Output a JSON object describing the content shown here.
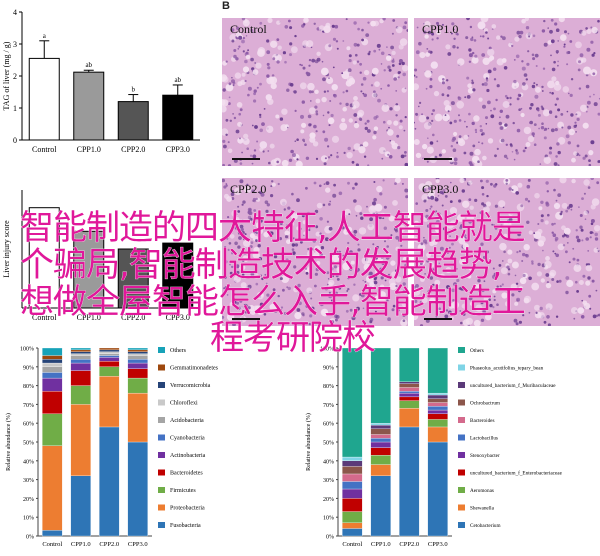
{
  "panel_b_label": "B",
  "micrographs": [
    {
      "label": "Control"
    },
    {
      "label": "CPP1.0"
    },
    {
      "label": "CPP2.0"
    },
    {
      "label": "CPP3.0"
    }
  ],
  "overlay_text": {
    "line1": "智能制造的四大特征,人工智能就是",
    "line2": "个骗局,智能制造技术的发展趋势,",
    "line3": "想做全屋智能怎么入手,智能制造工",
    "line4": "程考研院校"
  },
  "chart_data": [
    {
      "type": "bar",
      "title": "",
      "ylabel": "TAG of liver (mg / g)",
      "categories": [
        "Control",
        "CPP1.0",
        "CPP2.0",
        "CPP3.0"
      ],
      "values": [
        2.55,
        2.12,
        1.2,
        1.4
      ],
      "errors": [
        0.55,
        0.06,
        0.22,
        0.32
      ],
      "significance": [
        "a",
        "ab",
        "b",
        "ab"
      ],
      "bar_colors": [
        "#ffffff",
        "#9a9a9a",
        "#555555",
        "#000000"
      ],
      "yticks": [
        "0",
        "1",
        "2",
        "3",
        "4"
      ],
      "ylim": [
        0,
        4
      ]
    },
    {
      "type": "bar",
      "ylabel": "Liver injury score",
      "categories": [
        "Control",
        "CPP1.0",
        "CPP2.0",
        "CPP3.0"
      ],
      "values": [
        3.4,
        2.6,
        2.0,
        2.2
      ],
      "bar_colors": [
        "#ffffff",
        "#9a9a9a",
        "#555555",
        "#000000"
      ],
      "ylim": [
        0,
        4
      ]
    },
    {
      "type": "bar",
      "stacked": true,
      "ylabel": "Relative abundance (%)",
      "categories": [
        "Control",
        "CPP1.0",
        "CPP2.0",
        "CPP3.0"
      ],
      "yticks": [
        "0%",
        "10%",
        "20%",
        "30%",
        "40%",
        "50%",
        "60%",
        "70%",
        "80%",
        "90%",
        "100%"
      ],
      "series": [
        {
          "name": "Fusobacteria",
          "color": "#2e75b6",
          "values": [
            3,
            32,
            58,
            50
          ]
        },
        {
          "name": "Proteobacteria",
          "color": "#ed7d31",
          "values": [
            45,
            38,
            27,
            26
          ]
        },
        {
          "name": "Firmicutes",
          "color": "#70ad47",
          "values": [
            17,
            10,
            5,
            8
          ]
        },
        {
          "name": "Bacteroidetes",
          "color": "#c00000",
          "values": [
            12,
            8,
            3,
            5
          ]
        },
        {
          "name": "Actinobacteria",
          "color": "#7030a0",
          "values": [
            7,
            4,
            2,
            3
          ]
        },
        {
          "name": "Cyanobacteria",
          "color": "#4472c4",
          "values": [
            3,
            2,
            1,
            2
          ]
        },
        {
          "name": "Acidobacteria",
          "color": "#a5a5a5",
          "values": [
            3,
            2,
            1,
            2
          ]
        },
        {
          "name": "Chloroflexi",
          "color": "#c9c9c9",
          "values": [
            2,
            1,
            1,
            1
          ]
        },
        {
          "name": "Verrucomicrobia",
          "color": "#264478",
          "values": [
            2,
            1,
            1,
            1
          ]
        },
        {
          "name": "Gemmatimonadetes",
          "color": "#9e480e",
          "values": [
            2,
            1,
            1,
            1
          ]
        },
        {
          "name": "Others",
          "color": "#17a2b8",
          "values": [
            4,
            1,
            0,
            1
          ]
        }
      ]
    },
    {
      "type": "bar",
      "stacked": true,
      "ylabel": "Relative abundance (%)",
      "categories": [
        "Control",
        "CPP1.0",
        "CPP2.0",
        "CPP3.0"
      ],
      "yticks": [
        "0%",
        "10%",
        "20%",
        "30%",
        "40%",
        "50%",
        "60%",
        "70%",
        "80%",
        "90%",
        "100%"
      ],
      "series": [
        {
          "name": "Cetobacterium",
          "color": "#2e75b6",
          "values": [
            4,
            32,
            58,
            50
          ]
        },
        {
          "name": "Shewanella",
          "color": "#ed7d31",
          "values": [
            3,
            6,
            10,
            8
          ]
        },
        {
          "name": "Aeromonas",
          "color": "#70ad47",
          "values": [
            6,
            5,
            4,
            4
          ]
        },
        {
          "name": "uncultured_bacterium_f_Enterobacteriaceae",
          "color": "#c00000",
          "values": [
            7,
            4,
            2,
            3
          ]
        },
        {
          "name": "Stenoxybacter",
          "color": "#7030a0",
          "values": [
            5,
            3,
            2,
            2
          ]
        },
        {
          "name": "Lactobacillus",
          "color": "#4472c4",
          "values": [
            4,
            2,
            1,
            2
          ]
        },
        {
          "name": "Bacteroides",
          "color": "#d46a8c",
          "values": [
            4,
            2,
            2,
            2
          ]
        },
        {
          "name": "Ochrobactrum",
          "color": "#8c564b",
          "values": [
            4,
            3,
            2,
            2
          ]
        },
        {
          "name": "uncultured_bacterium_f_Muribaculaceae",
          "color": "#5b3a79",
          "values": [
            3,
            2,
            1,
            2
          ]
        },
        {
          "name": "Phaseolus_acutifolius_tepary_bean",
          "color": "#7fd4e6",
          "values": [
            2,
            1,
            0,
            1
          ]
        },
        {
          "name": "Others",
          "color": "#1fa68f",
          "values": [
            58,
            40,
            18,
            24
          ]
        }
      ]
    }
  ]
}
